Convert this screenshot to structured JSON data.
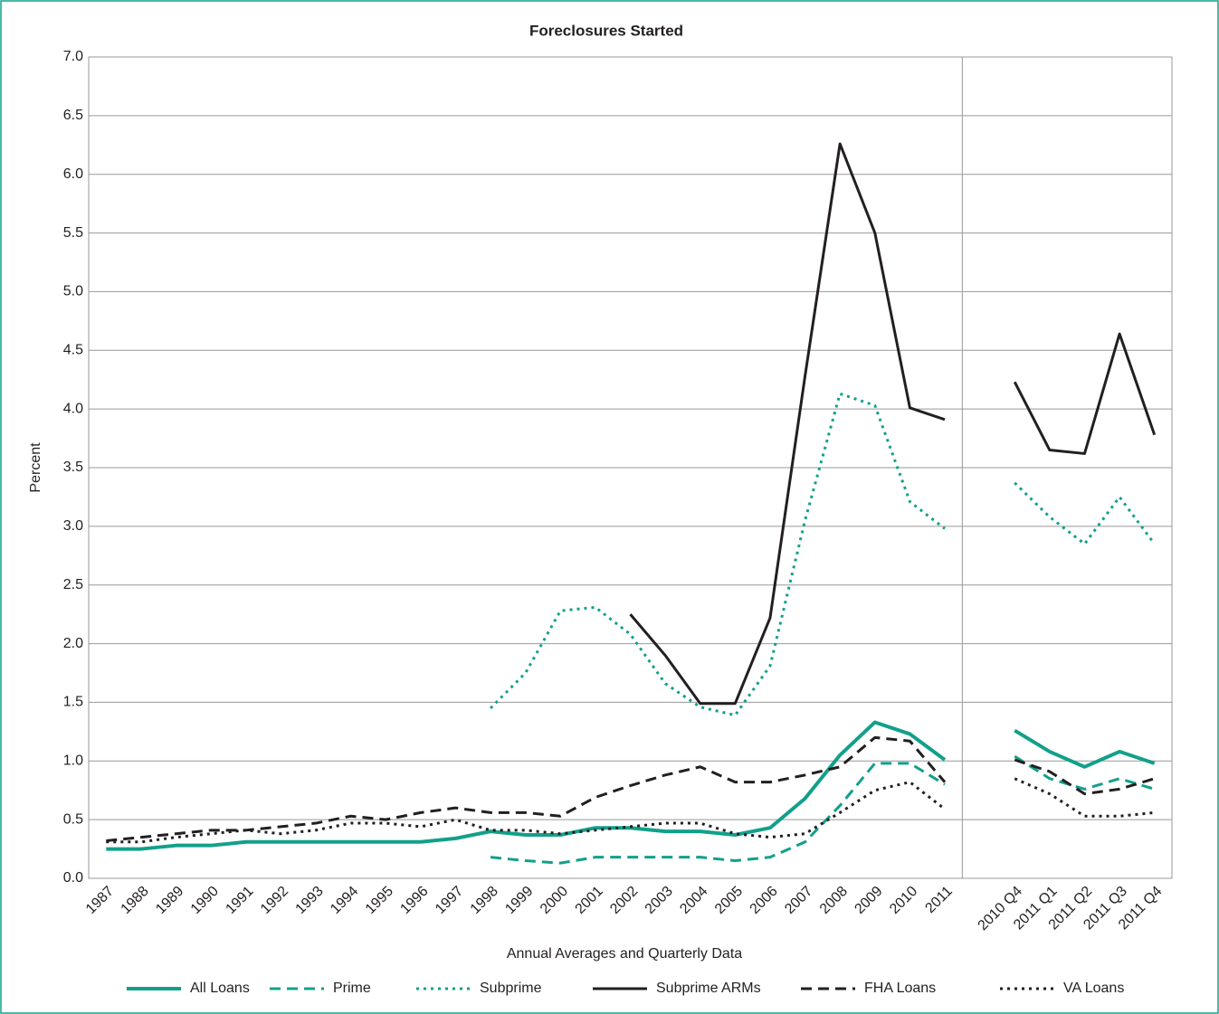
{
  "chart_data": {
    "type": "line",
    "title": "Foreclosures Started",
    "y_label": "Percent",
    "x_label": "Annual Averages and Quarterly Data",
    "categories": [
      "1987",
      "1988",
      "1989",
      "1990",
      "1991",
      "1992",
      "1993",
      "1994",
      "1995",
      "1996",
      "1997",
      "1998",
      "1999",
      "2000",
      "2001",
      "2002",
      "2003",
      "2004",
      "2005",
      "2006",
      "2007",
      "2008",
      "2009",
      "2010",
      "2011",
      null,
      "2010 Q4",
      "2011 Q1",
      "2011 Q2",
      "2011 Q3",
      "2011 Q4"
    ],
    "ylim": [
      0,
      7
    ],
    "yticks": [
      {
        "value": 0,
        "label": "0.0"
      },
      {
        "value": 0.5,
        "label": "0.5"
      },
      {
        "value": 1,
        "label": "1.0"
      },
      {
        "value": 1.5,
        "label": "1.5"
      },
      {
        "value": 2,
        "label": "2.0"
      },
      {
        "value": 2.5,
        "label": "2.5"
      },
      {
        "value": 3,
        "label": "3.0"
      },
      {
        "value": 3.5,
        "label": "3.5"
      },
      {
        "value": 4,
        "label": "4.0"
      },
      {
        "value": 4.5,
        "label": "4.5"
      },
      {
        "value": 5,
        "label": "5.0"
      },
      {
        "value": 5.5,
        "label": "5.5"
      },
      {
        "value": 6,
        "label": "6.0"
      },
      {
        "value": 6.5,
        "label": "6.5"
      },
      {
        "value": 7,
        "label": "7.0"
      }
    ],
    "grid": true,
    "legend": "bottom",
    "series": [
      {
        "name": "All Loans",
        "color": "#12a08a",
        "dash": "solid",
        "width": 4,
        "values": [
          0.25,
          0.25,
          0.28,
          0.28,
          0.31,
          0.31,
          0.31,
          0.31,
          0.31,
          0.31,
          0.34,
          0.4,
          0.37,
          0.37,
          0.43,
          0.43,
          0.4,
          0.4,
          0.37,
          0.43,
          0.68,
          1.05,
          1.33,
          1.23,
          1.01,
          null,
          1.26,
          1.08,
          0.95,
          1.08,
          0.98
        ]
      },
      {
        "name": "Prime",
        "color": "#12a08a",
        "dash": "dashed",
        "width": 3,
        "values": [
          null,
          null,
          null,
          null,
          null,
          null,
          null,
          null,
          null,
          null,
          null,
          0.18,
          0.15,
          0.13,
          0.18,
          0.18,
          0.18,
          0.18,
          0.15,
          0.18,
          0.31,
          0.62,
          0.98,
          0.98,
          0.8,
          null,
          1.04,
          0.85,
          0.76,
          0.85,
          0.76
        ]
      },
      {
        "name": "Subprime",
        "color": "#12a08a",
        "dash": "dotted",
        "width": 3,
        "values": [
          null,
          null,
          null,
          null,
          null,
          null,
          null,
          null,
          null,
          null,
          null,
          1.45,
          1.75,
          2.28,
          2.31,
          2.08,
          1.66,
          1.46,
          1.39,
          1.81,
          3.05,
          4.13,
          4.03,
          3.21,
          2.98,
          null,
          3.37,
          3.08,
          2.85,
          3.25,
          2.85
        ]
      },
      {
        "name": "Subprime ARMs",
        "color": "#231f20",
        "dash": "solid",
        "width": 3,
        "values": [
          null,
          null,
          null,
          null,
          null,
          null,
          null,
          null,
          null,
          null,
          null,
          null,
          null,
          null,
          null,
          2.25,
          1.9,
          1.49,
          1.49,
          2.22,
          4.28,
          6.26,
          5.5,
          4.01,
          3.91,
          null,
          4.23,
          3.65,
          3.62,
          4.64,
          3.78
        ]
      },
      {
        "name": "FHA Loans",
        "color": "#231f20",
        "dash": "dashed",
        "width": 3,
        "values": [
          0.32,
          0.35,
          0.38,
          0.41,
          0.41,
          0.44,
          0.47,
          0.53,
          0.5,
          0.56,
          0.6,
          0.56,
          0.56,
          0.53,
          0.69,
          0.79,
          0.88,
          0.95,
          0.82,
          0.82,
          0.88,
          0.95,
          1.2,
          1.17,
          0.82,
          null,
          1.01,
          0.91,
          0.72,
          0.76,
          0.85
        ]
      },
      {
        "name": "VA Loans",
        "color": "#231f20",
        "dash": "dotted",
        "width": 3,
        "values": [
          0.31,
          0.31,
          0.35,
          0.38,
          0.41,
          0.38,
          0.41,
          0.47,
          0.47,
          0.44,
          0.5,
          0.41,
          0.41,
          0.38,
          0.41,
          0.44,
          0.47,
          0.47,
          0.38,
          0.35,
          0.38,
          0.56,
          0.75,
          0.82,
          0.59,
          null,
          0.85,
          0.72,
          0.53,
          0.53,
          0.56
        ]
      }
    ]
  }
}
